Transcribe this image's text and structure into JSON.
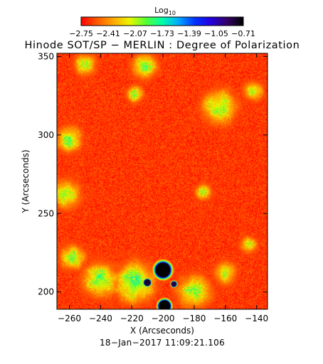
{
  "colorbar": {
    "label": "Log",
    "label_sub": "10",
    "ticks": [
      "−2.75",
      "−2.41",
      "−2.07",
      "−1.73",
      "−1.39",
      "−1.05",
      "−0.71"
    ],
    "range": [
      -2.75,
      -0.71
    ],
    "colors": [
      "#ff0000",
      "#ff5a00",
      "#ffaa00",
      "#e9f500",
      "#55ff33",
      "#00ffaa",
      "#00aaff",
      "#0033ff",
      "#2200dd",
      "#330066",
      "#000000"
    ]
  },
  "chart_data": {
    "type": "heatmap",
    "title": "Hinode SOT/SP − MERLIN : Degree of Polarization",
    "xlabel": "X (Arcseconds)",
    "ylabel": "Y (Arcseconds)",
    "xlim": [
      -268,
      -133
    ],
    "ylim": [
      189,
      352
    ],
    "xticks": [
      -260,
      -240,
      -220,
      -200,
      -180,
      -160,
      -140
    ],
    "yticks": [
      200,
      250,
      300,
      350
    ],
    "xtick_labels": [
      "−260",
      "−240",
      "−220",
      "−200",
      "−180",
      "−160",
      "−140"
    ],
    "ytick_labels": [
      "200",
      "250",
      "300",
      "350"
    ],
    "value_scale": "log10",
    "background_level": -2.75,
    "features": [
      {
        "kind": "sunspot",
        "x": -200,
        "y": 214,
        "r": 4.5,
        "level": -0.71
      },
      {
        "kind": "pore",
        "x": -210,
        "y": 206,
        "r": 2.0,
        "level": -0.8
      },
      {
        "kind": "pore",
        "x": -199,
        "y": 191,
        "r": 3.5,
        "level": -0.71
      },
      {
        "kind": "pore",
        "x": -193,
        "y": 205,
        "r": 1.6,
        "level": -0.85
      },
      {
        "kind": "plage",
        "x": -218,
        "y": 206,
        "r": 14,
        "level": -1.6
      },
      {
        "kind": "plage",
        "x": -240,
        "y": 208,
        "r": 12,
        "level": -1.7
      },
      {
        "kind": "plage",
        "x": -180,
        "y": 200,
        "r": 12,
        "level": -1.8
      },
      {
        "kind": "network",
        "x": -260,
        "y": 297,
        "r": 9,
        "level": -1.8
      },
      {
        "kind": "network",
        "x": -262,
        "y": 262,
        "r": 10,
        "level": -1.8
      },
      {
        "kind": "network",
        "x": -258,
        "y": 222,
        "r": 9,
        "level": -1.85
      },
      {
        "kind": "network",
        "x": -250,
        "y": 345,
        "r": 8,
        "level": -1.9
      },
      {
        "kind": "network",
        "x": -212,
        "y": 344,
        "r": 9,
        "level": -1.75
      },
      {
        "kind": "network",
        "x": -218,
        "y": 326,
        "r": 6,
        "level": -1.85
      },
      {
        "kind": "network",
        "x": -164,
        "y": 318,
        "r": 12,
        "level": -1.75
      },
      {
        "kind": "network",
        "x": -142,
        "y": 328,
        "r": 7,
        "level": -1.85
      },
      {
        "kind": "network",
        "x": -174,
        "y": 264,
        "r": 6,
        "level": -2.0
      },
      {
        "kind": "network",
        "x": -160,
        "y": 212,
        "r": 8,
        "level": -1.9
      },
      {
        "kind": "network",
        "x": -145,
        "y": 230,
        "r": 6,
        "level": -1.95
      }
    ]
  },
  "footer": {
    "timestamp": "18−Jan−2017  11:09:21.106"
  }
}
